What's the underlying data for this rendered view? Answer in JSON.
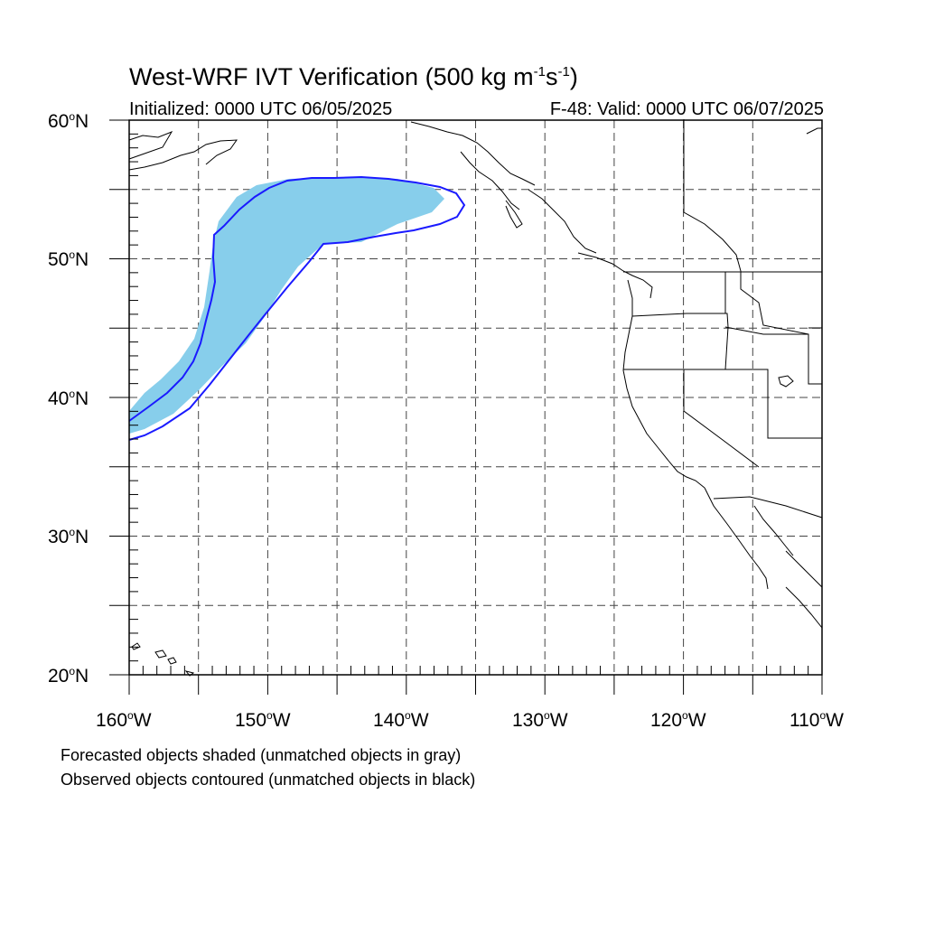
{
  "title": {
    "prefix": "West-WRF IVT Verification (500 kg m",
    "exp1": "-1",
    "mid": "s",
    "exp2": "-1",
    "suffix": ")"
  },
  "initialized": "Initialized: 0000 UTC 06/05/2025",
  "valid": "F-48: Valid: 0000 UTC 06/07/2025",
  "lat_labels": [
    {
      "num": "60",
      "deg": "o",
      "hem": "N"
    },
    {
      "num": "50",
      "deg": "o",
      "hem": "N"
    },
    {
      "num": "40",
      "deg": "o",
      "hem": "N"
    },
    {
      "num": "30",
      "deg": "o",
      "hem": "N"
    },
    {
      "num": "20",
      "deg": "o",
      "hem": "N"
    }
  ],
  "lon_labels": [
    {
      "num": "160",
      "deg": "o",
      "hem": "W"
    },
    {
      "num": "150",
      "deg": "o",
      "hem": "W"
    },
    {
      "num": "140",
      "deg": "o",
      "hem": "W"
    },
    {
      "num": "130",
      "deg": "o",
      "hem": "W"
    },
    {
      "num": "120",
      "deg": "o",
      "hem": "W"
    },
    {
      "num": "110",
      "deg": "o",
      "hem": "W"
    }
  ],
  "notes": [
    "Forecasted objects shaded (unmatched objects in gray)",
    "Observed objects contoured (unmatched objects in black)"
  ],
  "map": {
    "lon_range": [
      -160,
      -110
    ],
    "lat_range": [
      20,
      60
    ],
    "grid_spacing_deg": 5,
    "grid_style": "dashed",
    "forecast_fill_color": "#87ceeb",
    "observed_contour_color": "#1a1aff"
  }
}
